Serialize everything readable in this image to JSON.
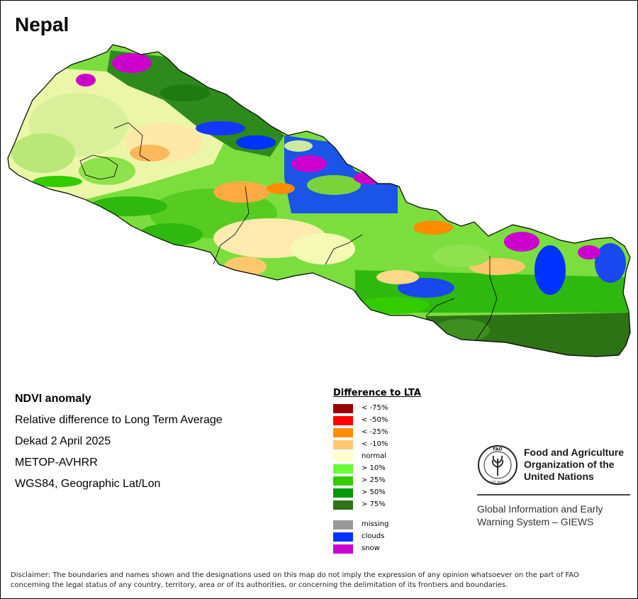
{
  "map": {
    "title": "Nepal"
  },
  "info": {
    "lines": [
      "NDVI anomaly",
      "Relative difference to Long Term Average",
      "Dekad 2 April 2025",
      "METOP-AVHRR",
      "WGS84, Geographic Lat/Lon"
    ]
  },
  "legend": {
    "title": "Difference to LTA",
    "items": [
      {
        "label": "< -75%",
        "color": "#990000"
      },
      {
        "label": "< -50%",
        "color": "#ff0000"
      },
      {
        "label": "< -25%",
        "color": "#ff8c00"
      },
      {
        "label": "< -10%",
        "color": "#ffc86e"
      },
      {
        "label": "normal",
        "color": "#ffffcc"
      },
      {
        "label": "> 10%",
        "color": "#66ff33"
      },
      {
        "label": "> 25%",
        "color": "#33cc00"
      },
      {
        "label": "> 50%",
        "color": "#009900"
      },
      {
        "label": "> 75%",
        "color": "#2e7216"
      }
    ],
    "extra_items": [
      {
        "label": "missing",
        "color": "#999999"
      },
      {
        "label": "clouds",
        "color": "#0033ff"
      },
      {
        "label": "snow",
        "color": "#cc00cc"
      }
    ]
  },
  "org": {
    "name_lines": [
      "Food and Agriculture",
      "Organization of the",
      "United Nations"
    ],
    "logo_text": "FAO",
    "logo_motto": "FIAT PANIS",
    "system_lines": [
      "Global Information and Early",
      "Warning System – GIEWS"
    ]
  },
  "disclaimer": "Disclaimer: The boundaries and names shown and the designations used on this map do not imply the expression of any opinion whatsoever on the part of FAO concerning the legal status of any country, territory, area or of its authorities, or concerning the delimitation of its frontiers and boundaries."
}
